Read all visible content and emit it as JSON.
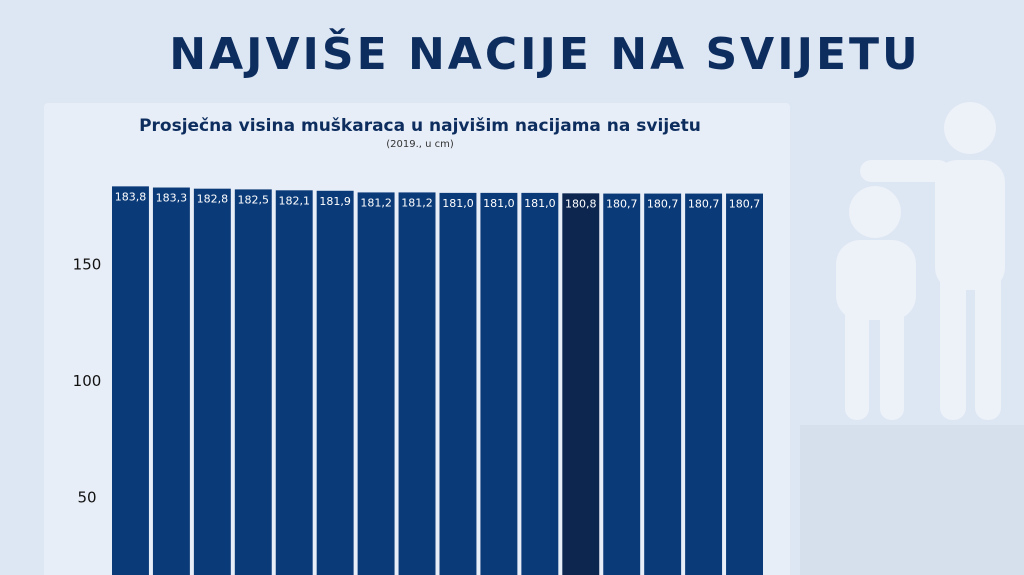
{
  "chart_data": {
    "type": "bar",
    "title": "NAJVIŠE NACIJE NA SVIJETU",
    "subtitle": "Prosječna visina muškaraca u najvišim nacijama na svijetu",
    "note": "(2019., u cm)",
    "values": [
      183.8,
      183.3,
      182.8,
      182.5,
      182.1,
      181.9,
      181.2,
      181.2,
      181.0,
      181.0,
      181.0,
      180.8,
      180.7,
      180.7,
      180.7,
      180.7
    ],
    "value_labels": [
      "183,8",
      "183,3",
      "182,8",
      "182,5",
      "182,1",
      "181,9",
      "181,2",
      "181,2",
      "181,0",
      "181,0",
      "181,0",
      "180,8",
      "180,7",
      "180,7",
      "180,7",
      "180,7"
    ],
    "colors": [
      "#0b3a78",
      "#0b3a78",
      "#0b3a78",
      "#0b3a78",
      "#0b3a78",
      "#0b3a78",
      "#0b3a78",
      "#0b3a78",
      "#0b3a78",
      "#0b3a78",
      "#0b3a78",
      "#0c2650",
      "#0b3a78",
      "#0b3a78",
      "#0b3a78",
      "#0b3a78"
    ],
    "ylim": [
      17,
      190
    ],
    "yticks": [
      50,
      100,
      150
    ],
    "grid": false
  }
}
